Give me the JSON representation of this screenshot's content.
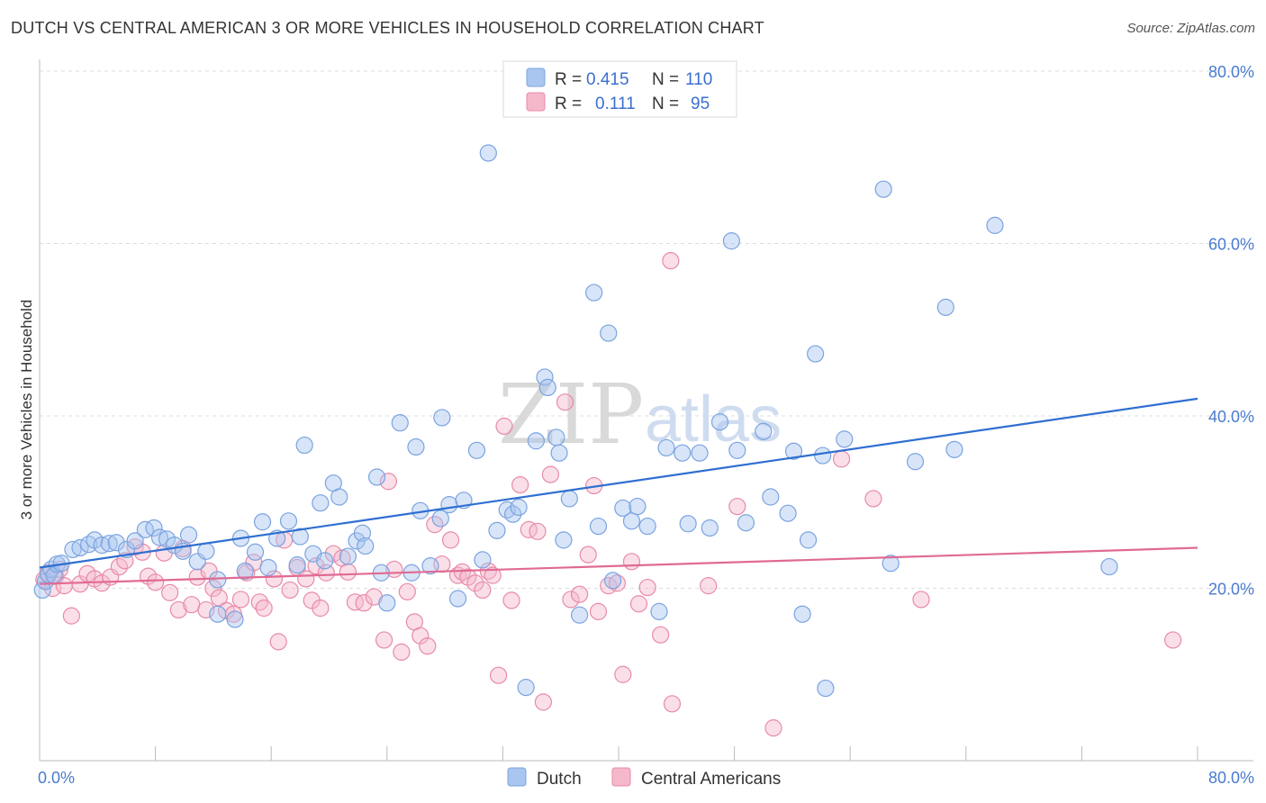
{
  "title": "DUTCH VS CENTRAL AMERICAN 3 OR MORE VEHICLES IN HOUSEHOLD CORRELATION CHART",
  "source": "Source: ZipAtlas.com",
  "watermark": {
    "zip": "ZIP",
    "atlas": "atlas"
  },
  "colors": {
    "dutch_fill": "#a9c6f0",
    "dutch_stroke": "#7aa3e0",
    "dutch_line": "#2f6fd1",
    "ca_fill": "#f5b8cb",
    "ca_stroke": "#e88aa8",
    "ca_line": "#e06a94",
    "axis_text": "#4a7bd0",
    "grid": "#dddddd"
  },
  "legend": {
    "rows": [
      {
        "r_label": "R =",
        "r_value": "0.415",
        "n_label": "N =",
        "n_value": "110",
        "color": "dutch"
      },
      {
        "r_label": "R =",
        "r_value": "0.111",
        "n_label": "N =",
        "n_value": "95",
        "color": "ca"
      }
    ]
  },
  "chart_data": {
    "type": "scatter",
    "xlabel": "",
    "ylabel": "3 or more Vehicles in Household",
    "xlim": [
      0,
      80
    ],
    "ylim": [
      0,
      80
    ],
    "x_tick_labels": [
      "0.0%",
      "80.0%"
    ],
    "y_tick_values": [
      20,
      40,
      60,
      80
    ],
    "y_tick_labels": [
      "20.0%",
      "40.0%",
      "60.0%",
      "80.0%"
    ],
    "grid": true,
    "legend_placement": "top-center",
    "series": [
      {
        "name": "Dutch",
        "color": "dutch",
        "trend": {
          "x": [
            0,
            80
          ],
          "y": [
            22.4,
            42.0
          ]
        },
        "points": [
          [
            0.2,
            19.8
          ],
          [
            0.4,
            20.8
          ],
          [
            0.6,
            21.6
          ],
          [
            0.8,
            22.2
          ],
          [
            1.0,
            21.5
          ],
          [
            1.2,
            22.8
          ],
          [
            1.5,
            22.9
          ],
          [
            2.3,
            24.5
          ],
          [
            2.8,
            24.7
          ],
          [
            3.4,
            25.1
          ],
          [
            3.8,
            25.6
          ],
          [
            4.3,
            25.0
          ],
          [
            4.8,
            25.2
          ],
          [
            5.3,
            25.3
          ],
          [
            6.0,
            24.5
          ],
          [
            6.6,
            25.5
          ],
          [
            7.3,
            26.8
          ],
          [
            7.9,
            27.0
          ],
          [
            8.3,
            25.9
          ],
          [
            8.8,
            25.7
          ],
          [
            9.3,
            25.0
          ],
          [
            9.9,
            24.3
          ],
          [
            10.3,
            26.2
          ],
          [
            10.9,
            23.1
          ],
          [
            11.5,
            24.3
          ],
          [
            12.3,
            21.0
          ],
          [
            12.3,
            17.0
          ],
          [
            13.5,
            16.4
          ],
          [
            13.9,
            25.8
          ],
          [
            14.2,
            22.0
          ],
          [
            14.9,
            24.2
          ],
          [
            15.4,
            27.7
          ],
          [
            15.8,
            22.4
          ],
          [
            16.4,
            25.8
          ],
          [
            17.2,
            27.8
          ],
          [
            17.8,
            22.7
          ],
          [
            18.0,
            26.0
          ],
          [
            18.3,
            36.6
          ],
          [
            18.9,
            24.0
          ],
          [
            19.4,
            29.9
          ],
          [
            19.7,
            23.2
          ],
          [
            20.3,
            32.2
          ],
          [
            20.7,
            30.6
          ],
          [
            21.3,
            23.7
          ],
          [
            21.9,
            25.5
          ],
          [
            22.3,
            26.4
          ],
          [
            22.5,
            24.9
          ],
          [
            23.3,
            32.9
          ],
          [
            23.6,
            21.8
          ],
          [
            24.0,
            18.3
          ],
          [
            24.9,
            39.2
          ],
          [
            25.7,
            21.8
          ],
          [
            26.0,
            36.4
          ],
          [
            26.3,
            29.0
          ],
          [
            27.0,
            22.6
          ],
          [
            27.7,
            28.1
          ],
          [
            27.8,
            39.8
          ],
          [
            28.3,
            29.7
          ],
          [
            28.9,
            18.8
          ],
          [
            29.3,
            30.2
          ],
          [
            30.2,
            36.0
          ],
          [
            30.6,
            23.3
          ],
          [
            31.0,
            70.5
          ],
          [
            31.6,
            26.7
          ],
          [
            32.3,
            29.1
          ],
          [
            32.7,
            28.6
          ],
          [
            33.1,
            29.4
          ],
          [
            33.6,
            8.5
          ],
          [
            34.3,
            37.1
          ],
          [
            34.9,
            44.5
          ],
          [
            35.1,
            43.3
          ],
          [
            35.7,
            37.5
          ],
          [
            35.9,
            35.7
          ],
          [
            36.2,
            25.6
          ],
          [
            36.6,
            30.4
          ],
          [
            37.3,
            16.9
          ],
          [
            38.3,
            54.3
          ],
          [
            38.6,
            27.2
          ],
          [
            39.3,
            49.6
          ],
          [
            39.6,
            20.9
          ],
          [
            40.3,
            29.3
          ],
          [
            40.9,
            27.8
          ],
          [
            41.3,
            29.5
          ],
          [
            42.0,
            27.2
          ],
          [
            42.8,
            17.3
          ],
          [
            43.3,
            36.3
          ],
          [
            44.4,
            35.7
          ],
          [
            44.8,
            27.5
          ],
          [
            45.6,
            35.7
          ],
          [
            46.3,
            27.0
          ],
          [
            47.0,
            39.3
          ],
          [
            47.8,
            60.3
          ],
          [
            48.2,
            36.0
          ],
          [
            48.8,
            27.6
          ],
          [
            50.0,
            38.2
          ],
          [
            50.5,
            30.6
          ],
          [
            51.7,
            28.7
          ],
          [
            52.1,
            35.9
          ],
          [
            52.7,
            17.0
          ],
          [
            53.1,
            25.6
          ],
          [
            53.6,
            47.2
          ],
          [
            54.1,
            35.4
          ],
          [
            54.3,
            8.4
          ],
          [
            55.6,
            37.3
          ],
          [
            58.3,
            66.3
          ],
          [
            58.8,
            22.9
          ],
          [
            60.5,
            34.7
          ],
          [
            62.6,
            52.6
          ],
          [
            63.2,
            36.1
          ],
          [
            66.0,
            62.1
          ],
          [
            73.9,
            22.5
          ]
        ]
      },
      {
        "name": "Central Americans",
        "color": "ca",
        "trend": {
          "x": [
            0,
            80
          ],
          "y": [
            20.5,
            24.7
          ]
        },
        "points": [
          [
            0.3,
            21.0
          ],
          [
            0.6,
            21.8
          ],
          [
            0.9,
            20.0
          ],
          [
            1.1,
            21.4
          ],
          [
            1.4,
            22.2
          ],
          [
            1.7,
            20.3
          ],
          [
            2.2,
            16.8
          ],
          [
            2.8,
            20.5
          ],
          [
            3.3,
            21.7
          ],
          [
            3.8,
            21.1
          ],
          [
            4.3,
            20.6
          ],
          [
            4.9,
            21.3
          ],
          [
            5.5,
            22.5
          ],
          [
            5.9,
            23.2
          ],
          [
            6.6,
            24.8
          ],
          [
            7.1,
            24.2
          ],
          [
            7.5,
            21.4
          ],
          [
            8.0,
            20.7
          ],
          [
            8.6,
            24.1
          ],
          [
            9.0,
            19.5
          ],
          [
            9.6,
            17.5
          ],
          [
            9.9,
            24.6
          ],
          [
            10.5,
            18.1
          ],
          [
            10.9,
            21.3
          ],
          [
            11.5,
            17.5
          ],
          [
            11.7,
            22.0
          ],
          [
            12.0,
            20.0
          ],
          [
            12.4,
            18.9
          ],
          [
            12.9,
            17.4
          ],
          [
            13.4,
            17.0
          ],
          [
            13.9,
            18.7
          ],
          [
            14.3,
            21.8
          ],
          [
            14.8,
            23.0
          ],
          [
            15.2,
            18.4
          ],
          [
            15.5,
            17.7
          ],
          [
            16.2,
            21.1
          ],
          [
            16.5,
            13.8
          ],
          [
            16.9,
            25.6
          ],
          [
            17.3,
            19.8
          ],
          [
            17.8,
            22.4
          ],
          [
            18.4,
            21.1
          ],
          [
            18.8,
            18.6
          ],
          [
            19.1,
            22.6
          ],
          [
            19.4,
            17.7
          ],
          [
            19.8,
            21.8
          ],
          [
            20.3,
            24.0
          ],
          [
            20.9,
            23.5
          ],
          [
            21.3,
            21.9
          ],
          [
            21.8,
            18.4
          ],
          [
            22.4,
            18.3
          ],
          [
            23.1,
            19.0
          ],
          [
            23.8,
            14.0
          ],
          [
            24.1,
            32.4
          ],
          [
            24.5,
            22.2
          ],
          [
            25.0,
            12.6
          ],
          [
            25.4,
            19.6
          ],
          [
            25.9,
            16.1
          ],
          [
            26.3,
            14.5
          ],
          [
            26.8,
            13.3
          ],
          [
            27.3,
            27.4
          ],
          [
            27.8,
            22.8
          ],
          [
            28.4,
            25.6
          ],
          [
            28.9,
            21.5
          ],
          [
            29.2,
            21.9
          ],
          [
            29.6,
            21.3
          ],
          [
            30.1,
            20.6
          ],
          [
            30.6,
            19.8
          ],
          [
            31.0,
            22.0
          ],
          [
            31.3,
            21.5
          ],
          [
            31.7,
            9.9
          ],
          [
            32.1,
            38.8
          ],
          [
            32.6,
            18.6
          ],
          [
            33.2,
            32.0
          ],
          [
            33.8,
            26.8
          ],
          [
            34.4,
            26.6
          ],
          [
            34.8,
            6.8
          ],
          [
            35.3,
            33.2
          ],
          [
            36.3,
            41.6
          ],
          [
            36.7,
            18.7
          ],
          [
            37.3,
            19.3
          ],
          [
            37.9,
            23.9
          ],
          [
            38.3,
            31.9
          ],
          [
            38.6,
            17.3
          ],
          [
            39.3,
            20.3
          ],
          [
            39.9,
            20.6
          ],
          [
            40.3,
            10.0
          ],
          [
            40.9,
            23.1
          ],
          [
            41.4,
            18.2
          ],
          [
            42.0,
            20.1
          ],
          [
            42.9,
            14.6
          ],
          [
            43.6,
            58.0
          ],
          [
            43.7,
            6.6
          ],
          [
            46.2,
            20.3
          ],
          [
            48.2,
            29.5
          ],
          [
            50.7,
            3.8
          ],
          [
            55.4,
            35.0
          ],
          [
            57.6,
            30.4
          ],
          [
            60.9,
            18.7
          ],
          [
            78.3,
            14.0
          ]
        ]
      }
    ]
  },
  "bottom_legend": {
    "items": [
      {
        "label": "Dutch",
        "color": "dutch"
      },
      {
        "label": "Central Americans",
        "color": "ca"
      }
    ]
  }
}
